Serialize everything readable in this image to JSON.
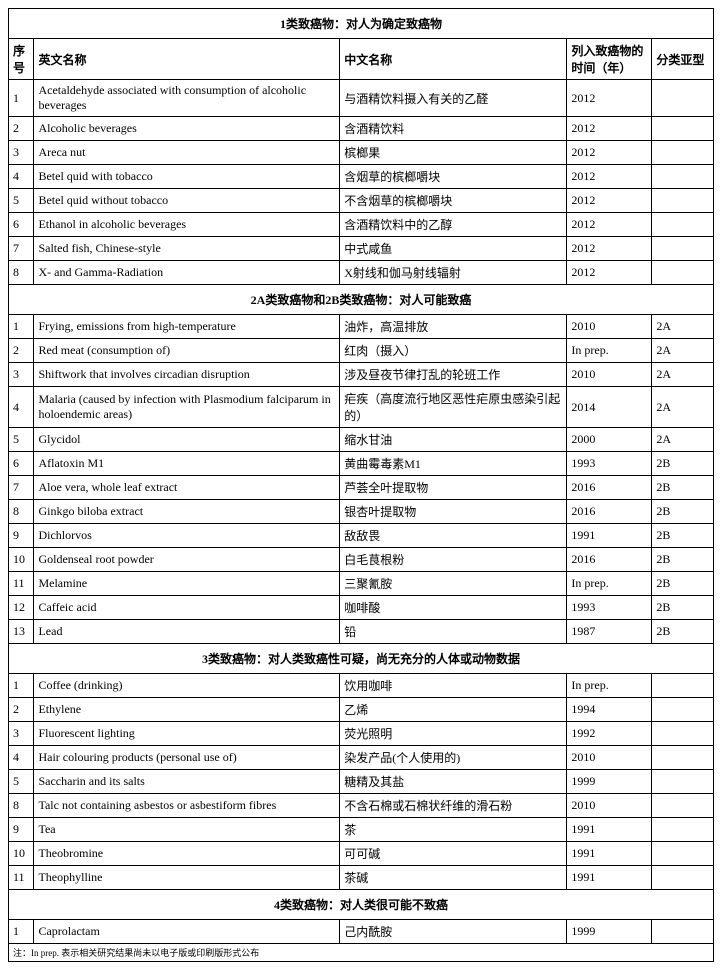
{
  "headers": {
    "num": "序号",
    "en": "英文名称",
    "cn": "中文名称",
    "year": "列入致癌物的时间（年）",
    "subtype": "分类亚型"
  },
  "sections": [
    {
      "title": "1类致癌物：对人为确定致癌物",
      "rows": [
        {
          "n": "1",
          "en": "Acetaldehyde associated with consumption of alcoholic beverages",
          "cn": "与酒精饮料摄入有关的乙醛",
          "yr": "2012",
          "sub": ""
        },
        {
          "n": "2",
          "en": "Alcoholic beverages",
          "cn": "含酒精饮料",
          "yr": "2012",
          "sub": ""
        },
        {
          "n": "3",
          "en": "Areca nut",
          "cn": "槟榔果",
          "yr": "2012",
          "sub": ""
        },
        {
          "n": "4",
          "en": "Betel quid with tobacco",
          "cn": "含烟草的槟榔嚼块",
          "yr": "2012",
          "sub": ""
        },
        {
          "n": "5",
          "en": "Betel quid without tobacco",
          "cn": "不含烟草的槟榔嚼块",
          "yr": "2012",
          "sub": ""
        },
        {
          "n": "6",
          "en": "Ethanol in alcoholic beverages",
          "cn": "含酒精饮料中的乙醇",
          "yr": "2012",
          "sub": ""
        },
        {
          "n": "7",
          "en": "Salted fish, Chinese-style",
          "cn": "中式咸鱼",
          "yr": "2012",
          "sub": ""
        },
        {
          "n": "8",
          "en": "X- and Gamma-Radiation",
          "cn": "X射线和伽马射线辐射",
          "yr": "2012",
          "sub": ""
        }
      ]
    },
    {
      "title": "2A类致癌物和2B类致癌物：对人可能致癌",
      "rows": [
        {
          "n": "1",
          "en": "Frying, emissions from high-temperature",
          "cn": "油炸，高温排放",
          "yr": "2010",
          "sub": "2A"
        },
        {
          "n": "2",
          "en": "Red meat (consumption of)",
          "cn": "红肉（摄入）",
          "yr": "In prep.",
          "sub": "2A"
        },
        {
          "n": "3",
          "en": "Shiftwork that involves circadian disruption",
          "cn": "涉及昼夜节律打乱的轮班工作",
          "yr": "2010",
          "sub": "2A"
        },
        {
          "n": "4",
          "en": "Malaria (caused by infection with Plasmodium falciparum in holoendemic areas)",
          "cn": "疟疾（高度流行地区恶性疟原虫感染引起的）",
          "yr": "2014",
          "sub": "2A"
        },
        {
          "n": "5",
          "en": "Glycidol",
          "cn": "缩水甘油",
          "yr": "2000",
          "sub": "2A"
        },
        {
          "n": "6",
          "en": "Aflatoxin M1",
          "cn": "黄曲霉毒素M1",
          "yr": "1993",
          "sub": "2B"
        },
        {
          "n": "7",
          "en": "Aloe vera, whole leaf extract",
          "cn": "芦荟全叶提取物",
          "yr": "2016",
          "sub": "2B"
        },
        {
          "n": "8",
          "en": "Ginkgo biloba extract",
          "cn": "银杏叶提取物",
          "yr": "2016",
          "sub": "2B"
        },
        {
          "n": "9",
          "en": "Dichlorvos",
          "cn": "敌敌畏",
          "yr": "1991",
          "sub": "2B"
        },
        {
          "n": "10",
          "en": "Goldenseal root powder",
          "cn": "白毛茛根粉",
          "yr": "2016",
          "sub": "2B"
        },
        {
          "n": "11",
          "en": "Melamine",
          "cn": "三聚氰胺",
          "yr": "In prep.",
          "sub": "2B"
        },
        {
          "n": "12",
          "en": "Caffeic acid",
          "cn": "咖啡酸",
          "yr": "1993",
          "sub": "2B"
        },
        {
          "n": "13",
          "en": "Lead",
          "cn": "铅",
          "yr": "1987",
          "sub": "2B"
        }
      ]
    },
    {
      "title": "3类致癌物：对人类致癌性可疑，尚无充分的人体或动物数据",
      "rows": [
        {
          "n": "1",
          "en": "Coffee (drinking)",
          "cn": "饮用咖啡",
          "yr": "In prep.",
          "sub": ""
        },
        {
          "n": "2",
          "en": "Ethylene",
          "cn": "乙烯",
          "yr": "1994",
          "sub": ""
        },
        {
          "n": "3",
          "en": "Fluorescent lighting",
          "cn": "荧光照明",
          "yr": "1992",
          "sub": ""
        },
        {
          "n": "4",
          "en": "Hair colouring products (personal use of)",
          "cn": "染发产品(个人使用的)",
          "yr": "2010",
          "sub": ""
        },
        {
          "n": "5",
          "en": "Saccharin and its salts",
          "cn": "糖精及其盐",
          "yr": "1999",
          "sub": ""
        },
        {
          "n": "8",
          "en": "Talc not containing asbestos or asbestiform fibres",
          "cn": "不含石棉或石棉状纤维的滑石粉",
          "yr": "2010",
          "sub": ""
        },
        {
          "n": "9",
          "en": "Tea",
          "cn": "茶",
          "yr": "1991",
          "sub": ""
        },
        {
          "n": "10",
          "en": "Theobromine",
          "cn": "可可碱",
          "yr": "1991",
          "sub": ""
        },
        {
          "n": "11",
          "en": "Theophylline",
          "cn": "茶碱",
          "yr": "1991",
          "sub": ""
        }
      ]
    },
    {
      "title": "4类致癌物：对人类很可能不致癌",
      "rows": [
        {
          "n": "1",
          "en": "Caprolactam",
          "cn": "己内酰胺",
          "yr": "1999",
          "sub": ""
        }
      ]
    }
  ],
  "footnote": "注：In prep. 表示相关研究结果尚未以电子版或印刷版形式公布"
}
